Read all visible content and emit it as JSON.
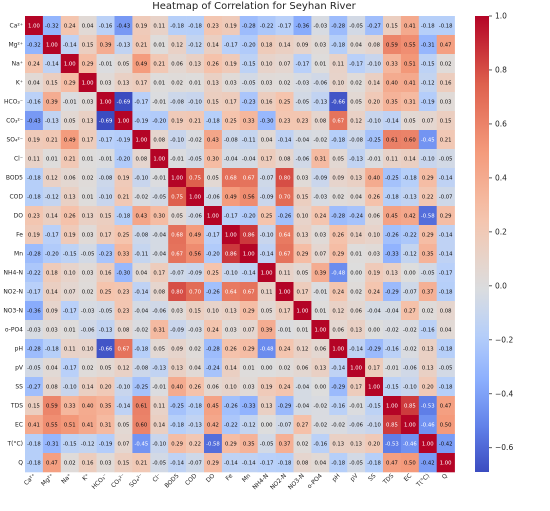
{
  "chart_data": {
    "type": "heatmap",
    "title": "Heatmap of Correlation for Seyhan River",
    "labels": [
      "Ca²⁺",
      "Mg²⁺",
      "Na⁺",
      "K⁺",
      "HCO₃⁻",
      "CO₃²⁻",
      "SO₄²⁻",
      "Cl⁻",
      "BOD5",
      "COD",
      "DO",
      "Fe",
      "Mn",
      "NH4-N",
      "NO2-N",
      "NO3-N",
      "o-PO4",
      "pH",
      "pV",
      "SS",
      "TDS",
      "EC",
      "T(°C)",
      "Q"
    ],
    "matrix": [
      [
        1.0,
        -0.32,
        0.24,
        0.04,
        -0.16,
        -0.43,
        0.19,
        0.11,
        -0.18,
        -0.18,
        0.23,
        0.19,
        -0.28,
        -0.22,
        -0.17,
        -0.36,
        -0.03,
        -0.28,
        -0.05,
        -0.27,
        0.15,
        0.41,
        -0.18,
        -0.18
      ],
      [
        -0.32,
        1.0,
        -0.14,
        0.15,
        0.39,
        -0.13,
        0.21,
        0.01,
        0.12,
        -0.12,
        0.14,
        -0.17,
        -0.2,
        0.18,
        0.14,
        0.09,
        0.03,
        -0.18,
        0.04,
        0.08,
        0.59,
        0.55,
        -0.31,
        0.47
      ],
      [
        0.24,
        -0.14,
        1.0,
        0.29,
        -0.01,
        0.05,
        0.49,
        0.21,
        0.06,
        0.13,
        0.26,
        0.19,
        -0.15,
        0.1,
        0.07,
        -0.17,
        0.01,
        0.11,
        -0.17,
        -0.1,
        0.33,
        0.51,
        -0.15,
        0.02
      ],
      [
        0.04,
        0.15,
        0.29,
        1.0,
        0.03,
        0.13,
        0.17,
        0.01,
        0.02,
        0.01,
        0.13,
        0.03,
        -0.05,
        0.03,
        0.02,
        -0.03,
        -0.06,
        0.1,
        0.02,
        0.14,
        0.4,
        0.41,
        -0.12,
        0.16
      ],
      [
        -0.16,
        0.39,
        -0.01,
        0.03,
        1.0,
        -0.69,
        -0.17,
        -0.01,
        -0.08,
        -0.1,
        0.15,
        0.17,
        -0.23,
        0.16,
        0.25,
        -0.05,
        -0.13,
        -0.66,
        0.05,
        0.2,
        0.35,
        0.31,
        -0.19,
        0.03
      ],
      [
        -0.43,
        -0.13,
        0.05,
        0.13,
        -0.69,
        1.0,
        -0.19,
        -0.2,
        0.19,
        0.21,
        -0.18,
        0.25,
        0.33,
        -0.3,
        0.23,
        0.23,
        0.08,
        0.67,
        0.12,
        -0.1,
        -0.14,
        0.05,
        0.07,
        0.15
      ],
      [
        0.19,
        0.21,
        0.49,
        0.17,
        -0.17,
        -0.19,
        1.0,
        0.08,
        -0.1,
        -0.02,
        0.43,
        -0.08,
        -0.11,
        0.04,
        -0.14,
        -0.04,
        -0.02,
        -0.18,
        -0.08,
        -0.25,
        0.61,
        0.6,
        -0.45,
        0.21
      ],
      [
        0.11,
        0.01,
        0.21,
        0.01,
        -0.01,
        -0.2,
        0.08,
        1.0,
        -0.01,
        -0.05,
        0.3,
        -0.04,
        -0.04,
        0.17,
        0.08,
        -0.06,
        0.31,
        0.05,
        -0.13,
        -0.01,
        0.11,
        0.14,
        -0.1,
        -0.05
      ],
      [
        -0.18,
        0.12,
        0.06,
        0.02,
        -0.08,
        0.19,
        -0.1,
        -0.01,
        1.0,
        0.75,
        0.05,
        0.68,
        0.67,
        -0.07,
        0.8,
        0.03,
        -0.09,
        0.09,
        0.13,
        0.4,
        -0.25,
        -0.18,
        0.29,
        -0.14
      ],
      [
        -0.18,
        -0.12,
        0.13,
        0.01,
        -0.1,
        0.21,
        -0.02,
        -0.05,
        0.75,
        1.0,
        -0.06,
        0.49,
        0.56,
        -0.09,
        0.7,
        0.15,
        -0.03,
        0.02,
        0.04,
        0.26,
        -0.18,
        -0.13,
        0.22,
        -0.07
      ],
      [
        0.23,
        0.14,
        0.26,
        0.13,
        0.15,
        -0.18,
        0.43,
        0.3,
        0.05,
        -0.06,
        1.0,
        -0.17,
        -0.2,
        0.25,
        -0.26,
        0.1,
        0.24,
        -0.28,
        -0.24,
        0.06,
        0.45,
        0.42,
        -0.58,
        0.29
      ],
      [
        0.19,
        -0.17,
        0.19,
        0.03,
        0.17,
        0.25,
        -0.08,
        -0.04,
        0.68,
        0.49,
        -0.17,
        1.0,
        0.86,
        -0.1,
        0.64,
        0.13,
        0.03,
        0.26,
        0.14,
        0.1,
        -0.26,
        -0.22,
        0.29,
        -0.14
      ],
      [
        -0.28,
        -0.2,
        -0.15,
        -0.05,
        -0.23,
        0.33,
        -0.11,
        -0.04,
        0.67,
        0.56,
        -0.2,
        0.86,
        1.0,
        -0.14,
        0.67,
        0.29,
        0.07,
        0.29,
        0.01,
        0.03,
        -0.33,
        -0.12,
        0.35,
        -0.14
      ],
      [
        -0.22,
        0.18,
        0.1,
        0.03,
        0.16,
        -0.3,
        0.04,
        0.17,
        -0.07,
        -0.09,
        0.25,
        -0.1,
        -0.14,
        1.0,
        0.11,
        0.05,
        0.39,
        -0.48,
        0.0,
        0.19,
        0.13,
        -0.0,
        -0.05,
        -0.17
      ],
      [
        -0.17,
        0.14,
        0.07,
        0.02,
        0.25,
        0.23,
        -0.14,
        0.08,
        0.8,
        0.7,
        -0.26,
        0.64,
        0.67,
        0.11,
        1.0,
        0.17,
        -0.01,
        0.24,
        0.02,
        0.24,
        -0.29,
        -0.07,
        0.37,
        -0.18
      ],
      [
        -0.36,
        0.09,
        -0.17,
        -0.03,
        -0.05,
        0.23,
        -0.04,
        -0.06,
        0.03,
        0.15,
        0.1,
        0.13,
        0.29,
        0.05,
        0.17,
        1.0,
        0.01,
        0.12,
        0.06,
        -0.04,
        -0.04,
        0.27,
        0.02,
        0.08
      ],
      [
        -0.03,
        0.03,
        0.01,
        -0.06,
        -0.13,
        0.08,
        -0.02,
        0.31,
        -0.09,
        -0.03,
        0.24,
        0.03,
        0.07,
        0.39,
        -0.01,
        0.01,
        1.0,
        0.06,
        0.13,
        0.0,
        -0.02,
        -0.02,
        -0.16,
        0.04
      ],
      [
        -0.28,
        -0.18,
        0.11,
        0.1,
        -0.66,
        0.67,
        -0.18,
        0.05,
        0.09,
        0.02,
        -0.28,
        0.26,
        0.29,
        -0.48,
        0.24,
        0.12,
        0.06,
        1.0,
        -0.14,
        -0.29,
        -0.16,
        -0.02,
        0.13,
        -0.18
      ],
      [
        -0.05,
        0.04,
        -0.17,
        0.02,
        0.05,
        0.12,
        -0.08,
        -0.13,
        0.13,
        0.04,
        -0.24,
        0.14,
        0.01,
        0.0,
        0.02,
        0.06,
        0.13,
        -0.14,
        1.0,
        0.17,
        -0.01,
        -0.06,
        0.13,
        -0.05
      ],
      [
        -0.27,
        0.08,
        -0.1,
        0.14,
        0.2,
        -0.1,
        -0.25,
        -0.01,
        0.4,
        0.26,
        0.06,
        0.1,
        0.03,
        0.19,
        0.24,
        -0.04,
        0.0,
        -0.29,
        0.17,
        1.0,
        -0.15,
        -0.1,
        0.2,
        -0.18
      ],
      [
        0.15,
        0.59,
        0.33,
        0.4,
        0.35,
        -0.14,
        0.61,
        0.11,
        -0.25,
        -0.18,
        0.45,
        -0.26,
        -0.33,
        0.13,
        -0.29,
        -0.04,
        -0.02,
        -0.16,
        -0.01,
        -0.15,
        1.0,
        0.85,
        -0.53,
        0.47
      ],
      [
        0.41,
        0.55,
        0.51,
        0.41,
        0.31,
        0.05,
        0.6,
        0.14,
        -0.18,
        -0.13,
        0.42,
        -0.22,
        -0.12,
        -0.0,
        -0.07,
        0.27,
        -0.02,
        -0.02,
        -0.06,
        -0.1,
        0.85,
        1.0,
        -0.46,
        0.5
      ],
      [
        -0.18,
        -0.31,
        -0.15,
        -0.12,
        -0.19,
        0.07,
        -0.45,
        -0.1,
        0.29,
        0.22,
        -0.58,
        0.29,
        0.35,
        -0.05,
        0.37,
        0.02,
        -0.16,
        0.13,
        0.13,
        0.2,
        -0.53,
        -0.46,
        1.0,
        -0.42
      ],
      [
        -0.18,
        0.47,
        0.02,
        0.16,
        0.03,
        0.15,
        0.21,
        -0.05,
        -0.14,
        -0.07,
        0.29,
        -0.14,
        -0.14,
        -0.17,
        -0.18,
        0.08,
        0.04,
        -0.18,
        -0.05,
        -0.18,
        0.47,
        0.5,
        -0.42,
        1.0
      ]
    ],
    "colorbar": {
      "vmin": -0.69,
      "vmax": 1.0,
      "ticks": [
        1.0,
        0.8,
        0.6,
        0.4,
        0.2,
        0.0,
        -0.2,
        -0.4,
        -0.6
      ],
      "tick_labels": [
        "1.0",
        "0.8",
        "0.6",
        "0.4",
        "0.2",
        "0.0",
        "−0.2",
        "−0.4",
        "−0.6"
      ],
      "colormap": "coolwarm"
    },
    "colors": {
      "low": "#3b4cc0",
      "mid": "#dddddd",
      "high": "#b40426"
    },
    "annotations": "values shown in each cell, 2 decimals",
    "grid": false,
    "legend": "colorbar-right"
  }
}
